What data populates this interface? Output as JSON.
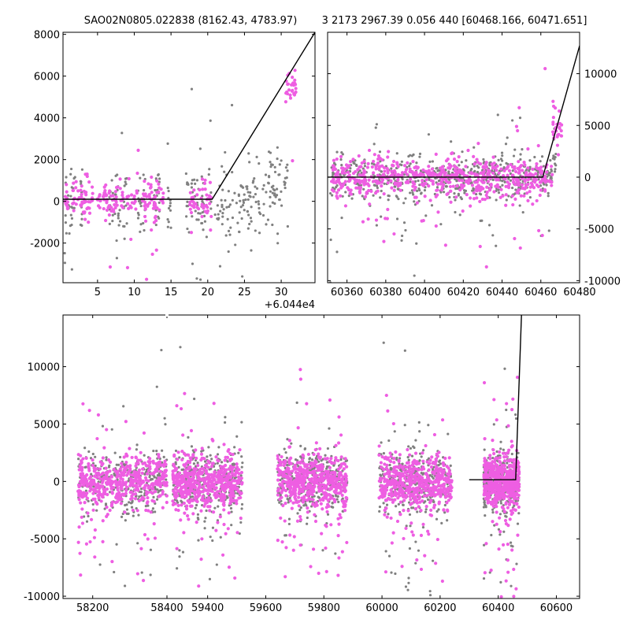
{
  "titles": {
    "left": "SAO02N0805.022838 (8162.43, 4783.97)",
    "right": "3 2173 2967.39 0.056 440 [60468.166, 60471.651]"
  },
  "colors": {
    "grey": "#808080",
    "magenta": "#ee5ee2",
    "line": "#000000"
  },
  "chart_data": [
    {
      "type": "scatter",
      "panel": "top-left zoom",
      "x_offset_label": "+6.044e4",
      "x_offset": 60440,
      "xlim": [
        0.3,
        34.6
      ],
      "ylim": [
        -3900,
        8100
      ],
      "x_ticks": [
        5,
        10,
        15,
        20,
        25,
        30
      ],
      "y_ticks": [
        -2000,
        0,
        2000,
        4000,
        6000,
        8000
      ],
      "y_axis_side": "left",
      "series": [
        {
          "color": "grey",
          "x_clusters": [
            [
              0.5,
              2.0
            ],
            [
              2.7,
              3.0
            ],
            [
              6.6,
              9.0
            ],
            [
              10.5,
              11.5
            ],
            [
              12.5,
              13.5
            ],
            [
              14.5,
              15.0
            ],
            [
              17.0,
              20.5
            ],
            [
              21.0,
              28.5
            ],
            [
              28.5,
              31.0
            ]
          ],
          "y_center": 0,
          "y_spread": 900
        },
        {
          "color": "magenta",
          "x_clusters": [
            [
              0.5,
              1.0
            ],
            [
              1.5,
              4.5
            ],
            [
              5.0,
              8.5
            ],
            [
              9.0,
              14.0
            ],
            [
              17.5,
              20.5
            ],
            [
              30.5,
              32.0
            ]
          ],
          "y_center": 100,
          "y_spread": 400
        }
      ],
      "model_line": {
        "x": [
          0.3,
          20.6,
          34.6
        ],
        "y": [
          100,
          100,
          8100
        ]
      }
    },
    {
      "type": "scatter",
      "panel": "top-right zoom",
      "xlim": [
        60350,
        60480
      ],
      "ylim": [
        -10200,
        14000
      ],
      "x_ticks": [
        60360,
        60380,
        60400,
        60420,
        60440,
        60460,
        60480
      ],
      "y_ticks": [
        -10000,
        -5000,
        0,
        5000,
        10000
      ],
      "y_axis_side": "right",
      "series": [
        {
          "color": "grey",
          "x_range": [
            60351,
            60468
          ],
          "y_center": 0,
          "y_spread": 1000
        },
        {
          "color": "magenta",
          "x_range": [
            60352,
            60471
          ],
          "y_center": 0,
          "y_spread": 900
        }
      ],
      "model_line": {
        "x": [
          60350,
          60461,
          60480
        ],
        "y": [
          0,
          0,
          12700
        ]
      }
    },
    {
      "type": "scatter",
      "panel": "bottom full light curve",
      "xlim": [
        58120,
        60680
      ],
      "ylim": [
        -10200,
        14500
      ],
      "x_ticks": [
        58200,
        58400,
        59400,
        59600,
        59800,
        60000,
        60200,
        60400,
        60600
      ],
      "y_ticks": [
        -10000,
        -5000,
        0,
        5000,
        10000
      ],
      "y_axis_side": "left",
      "axis_break_x": 58400,
      "seasons": [
        [
          58160,
          58410
        ],
        [
          59280,
          59520
        ],
        [
          59640,
          59880
        ],
        [
          59990,
          60240
        ],
        [
          60350,
          60472
        ]
      ],
      "series": [
        {
          "color": "grey",
          "y_center": 0,
          "y_spread": 1300
        },
        {
          "color": "magenta",
          "y_center": 0,
          "y_spread": 1100
        }
      ],
      "model_line": {
        "x": [
          60300,
          60460,
          60480
        ],
        "y": [
          150,
          150,
          14500
        ]
      }
    }
  ]
}
